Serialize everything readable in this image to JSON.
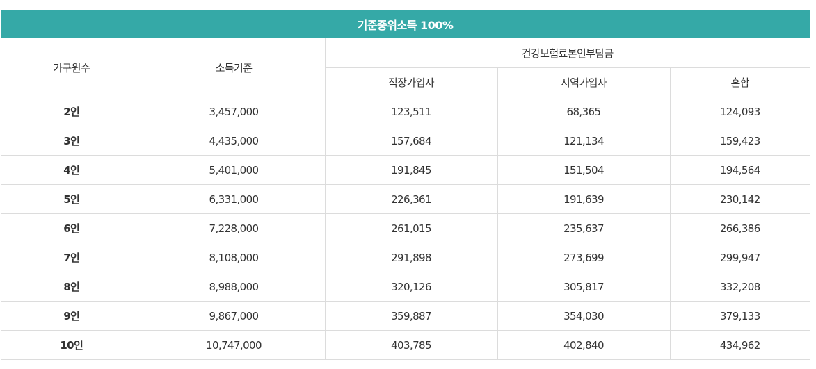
{
  "table": {
    "title": "기준중위소득 100%",
    "headers": {
      "household": "가구원수",
      "income": "소득기준",
      "premium_group": "건강보험료본인부담금",
      "workplace": "직장가입자",
      "regional": "지역가입자",
      "mixed": "혼합"
    },
    "rows": [
      {
        "household": "2인",
        "income": "3,457,000",
        "workplace": "123,511",
        "regional": "68,365",
        "mixed": "124,093"
      },
      {
        "household": "3인",
        "income": "4,435,000",
        "workplace": "157,684",
        "regional": "121,134",
        "mixed": "159,423"
      },
      {
        "household": "4인",
        "income": "5,401,000",
        "workplace": "191,845",
        "regional": "151,504",
        "mixed": "194,564"
      },
      {
        "household": "5인",
        "income": "6,331,000",
        "workplace": "226,361",
        "regional": "191,639",
        "mixed": "230,142"
      },
      {
        "household": "6인",
        "income": "7,228,000",
        "workplace": "261,015",
        "regional": "235,637",
        "mixed": "266,386"
      },
      {
        "household": "7인",
        "income": "8,108,000",
        "workplace": "291,898",
        "regional": "273,699",
        "mixed": "299,947"
      },
      {
        "household": "8인",
        "income": "8,988,000",
        "workplace": "320,126",
        "regional": "305,817",
        "mixed": "332,208"
      },
      {
        "household": "9인",
        "income": "9,867,000",
        "workplace": "359,887",
        "regional": "354,030",
        "mixed": "379,133"
      },
      {
        "household": "10인",
        "income": "10,747,000",
        "workplace": "403,785",
        "regional": "402,840",
        "mixed": "434,962"
      }
    ],
    "colors": {
      "title_bg": "#35a9a7",
      "title_text": "#ffffff",
      "border": "#dcdcdc",
      "text": "#333333"
    }
  }
}
